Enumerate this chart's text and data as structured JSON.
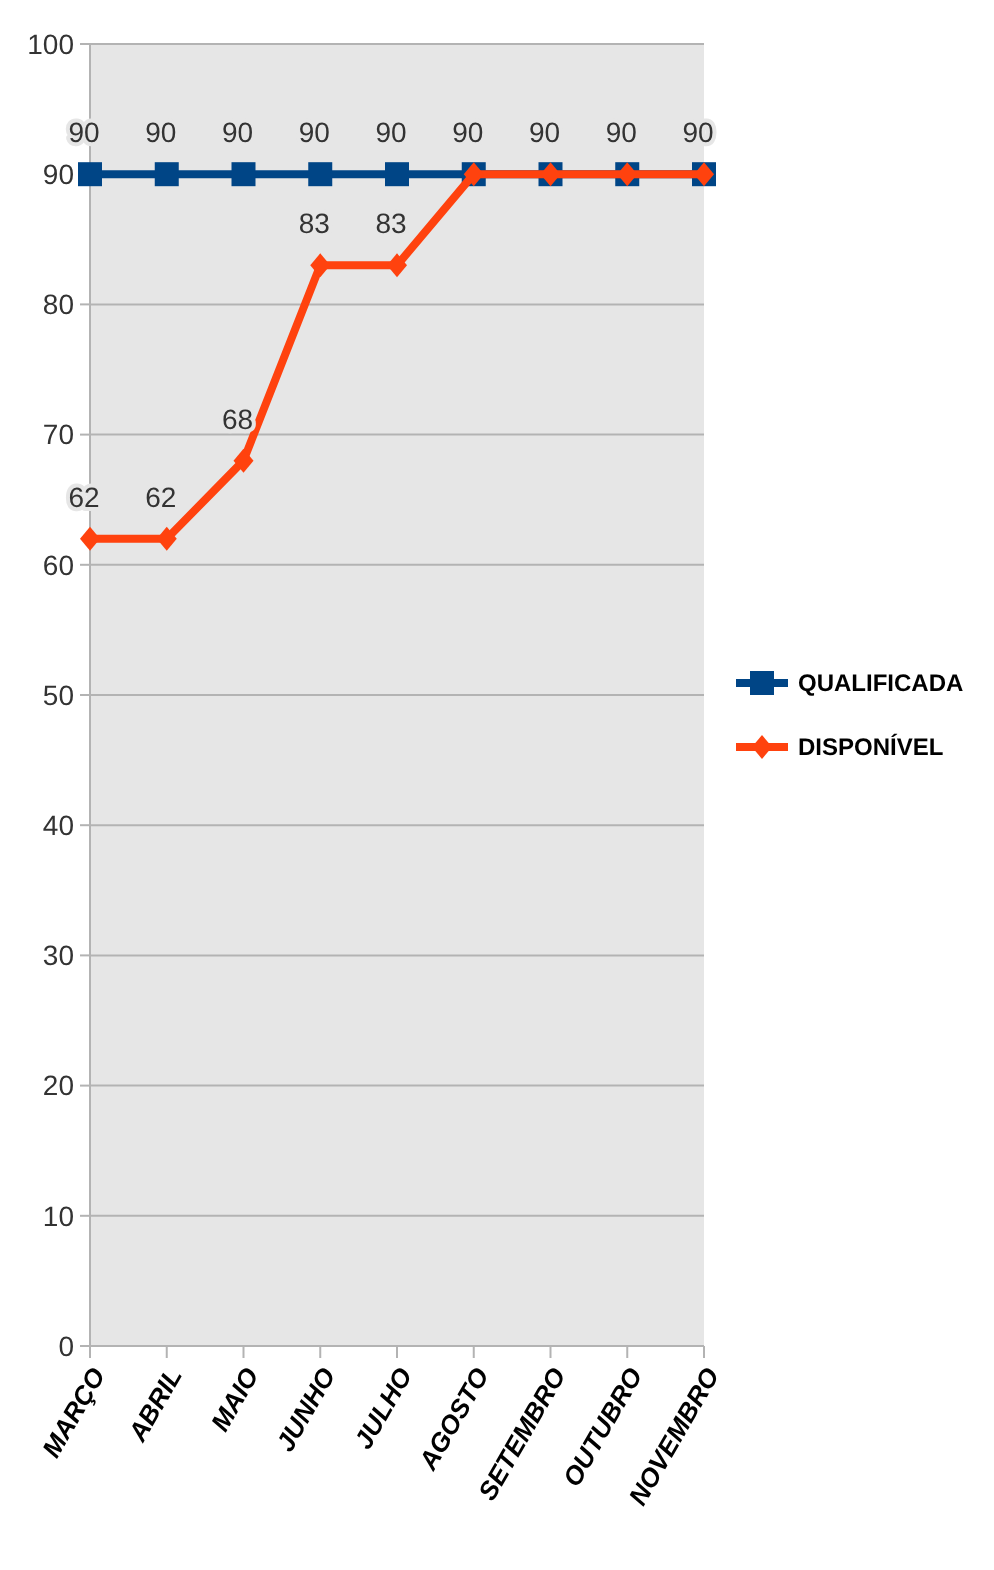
{
  "chart_data": {
    "type": "line",
    "categories": [
      "MARÇO",
      "ABRIL",
      "MAIO",
      "JUNHO",
      "JULHO",
      "AGOSTO",
      "SETEMBRO",
      "OUTUBRO",
      "NOVEMBRO"
    ],
    "series": [
      {
        "name": "QUALIFICADA",
        "color": "#004586",
        "marker": "square",
        "values": [
          90,
          90,
          90,
          90,
          90,
          90,
          90,
          90,
          90
        ],
        "value_labels": [
          "90",
          "90",
          "90",
          "90",
          "90",
          "90",
          "90",
          "90",
          "90"
        ]
      },
      {
        "name": "DISPONÍVEL",
        "color": "#ff420e",
        "marker": "diamond",
        "values": [
          62,
          62,
          68,
          83,
          83,
          90,
          90,
          90,
          90
        ],
        "value_labels": [
          "62",
          "62",
          "68",
          "83",
          "83",
          null,
          null,
          null,
          null
        ]
      }
    ],
    "ylim": [
      0,
      100
    ],
    "yticks": [
      0,
      10,
      20,
      30,
      40,
      50,
      60,
      70,
      80,
      90,
      100
    ],
    "grid": "y",
    "legend": "right"
  }
}
